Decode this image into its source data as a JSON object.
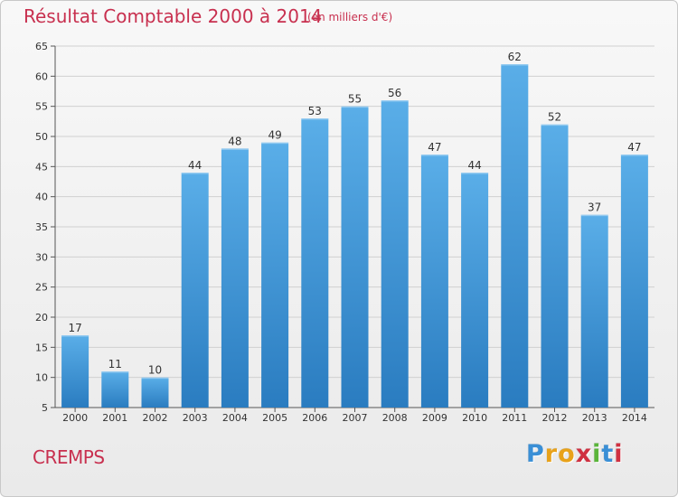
{
  "chart_data": {
    "type": "bar",
    "title": "Résultat Comptable 2000 à 2014",
    "subtitle": "(en milliers d'€)",
    "categories": [
      "2000",
      "2001",
      "2002",
      "2003",
      "2004",
      "2005",
      "2006",
      "2007",
      "2008",
      "2009",
      "2010",
      "2011",
      "2012",
      "2013",
      "2014"
    ],
    "values": [
      17,
      11,
      10,
      44,
      48,
      49,
      53,
      55,
      56,
      47,
      44,
      62,
      52,
      37,
      47
    ],
    "ylim": [
      5,
      65
    ],
    "yticks": [
      5,
      10,
      15,
      20,
      25,
      30,
      35,
      40,
      45,
      50,
      55,
      60,
      65
    ],
    "grid": true,
    "bar_color_top": "#5aaee8",
    "bar_color_bottom": "#2a7cc0"
  },
  "footer": {
    "place": "CREMPS",
    "logo_letters": [
      "P",
      "r",
      "o",
      "x",
      "i",
      "t",
      "i"
    ],
    "logo_colors": [
      "#3a8fd6",
      "#e8a21a",
      "#e8a21a",
      "#d03040",
      "#5ab53a",
      "#3a8fd6",
      "#d03040"
    ]
  }
}
